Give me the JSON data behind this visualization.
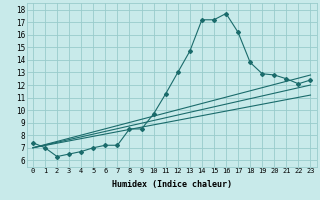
{
  "xlabel": "Humidex (Indice chaleur)",
  "ylabel": "",
  "bg_color": "#c8eaea",
  "grid_color": "#99cccc",
  "line_color": "#1a6b6b",
  "xlim": [
    -0.5,
    23.5
  ],
  "ylim": [
    5.5,
    18.5
  ],
  "xticks": [
    0,
    1,
    2,
    3,
    4,
    5,
    6,
    7,
    8,
    9,
    10,
    11,
    12,
    13,
    14,
    15,
    16,
    17,
    18,
    19,
    20,
    21,
    22,
    23
  ],
  "yticks": [
    6,
    7,
    8,
    9,
    10,
    11,
    12,
    13,
    14,
    15,
    16,
    17,
    18
  ],
  "main_x": [
    0,
    1,
    2,
    3,
    4,
    5,
    6,
    7,
    8,
    9,
    10,
    11,
    12,
    13,
    14,
    15,
    16,
    17,
    18,
    19,
    20,
    21,
    22,
    23
  ],
  "main_y": [
    7.4,
    7.0,
    6.3,
    6.5,
    6.7,
    7.0,
    7.2,
    7.2,
    8.5,
    8.5,
    9.7,
    11.3,
    13.0,
    14.7,
    17.2,
    17.2,
    17.7,
    16.2,
    13.8,
    12.9,
    12.8,
    12.5,
    12.1,
    12.4
  ],
  "line2_x": [
    0,
    23
  ],
  "line2_y": [
    7.0,
    12.8
  ],
  "line3_x": [
    0,
    23
  ],
  "line3_y": [
    7.0,
    12.0
  ],
  "line4_x": [
    0,
    23
  ],
  "line4_y": [
    7.0,
    11.2
  ],
  "xlabel_fontsize": 6,
  "tick_fontsize_x": 5,
  "tick_fontsize_y": 5.5
}
